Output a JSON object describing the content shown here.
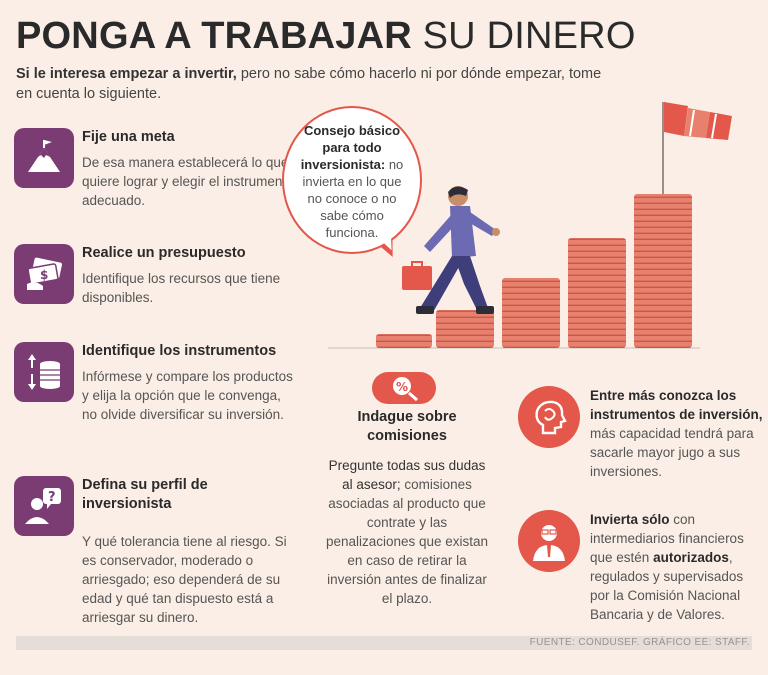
{
  "header": {
    "title_bold": "PONGA A TRABAJAR",
    "title_light": "SU DINERO",
    "intro_bold": "Si le interesa empezar a invertir,",
    "intro_rest": " pero no sabe cómo hacerlo ni por dónde empezar, tome en cuenta lo siguiente."
  },
  "left_items": [
    {
      "icon": "mountain-flag-icon",
      "title": "Fije una meta",
      "body": "De esa manera establecerá lo que quiere lograr y elegir el instrumento adecuado."
    },
    {
      "icon": "money-bills-icon",
      "title": "Realice un presupuesto",
      "body": "Identifique los recursos que tiene disponibles."
    },
    {
      "icon": "coins-chart-icon",
      "title": "Identifique los instrumentos",
      "body": "Infórmese y compare los productos y elija la opción que le convenga, no olvide diversificar su inversión."
    },
    {
      "icon": "person-question-icon",
      "title": "Defina su perfil de inversionista",
      "body": "Y qué tolerancia tiene al riesgo. Si es conservador, moderado o arriesgado; eso dependerá de su edad y qué tan dispuesto está a arriesgar su dinero."
    }
  ],
  "bubble": {
    "bold": "Consejo básico para todo inversionista:",
    "rest": " no invierta en lo que no conoce o no sabe cómo funciona."
  },
  "middle": {
    "icon": "percent-magnifier-icon",
    "title": "Indague sobre comisiones",
    "body_strong": "Pregunte todas sus dudas al asesor;",
    "body_rest": " comisiones asociadas al producto que contrate y las penalizaciones que existan en caso de retirar la inversión antes de finalizar el plazo."
  },
  "right_items": [
    {
      "icon": "head-profile-icon",
      "bold": "Entre más conozca los instrumentos de inversión,",
      "rest": " más capacidad tendrá para sacarle mayor jugo a sus inversiones."
    },
    {
      "icon": "advisor-person-icon",
      "bold": "Invierta sólo",
      "rest": " con intermediarios financieros que estén ",
      "bold2": "autorizados",
      "rest2": ", regulados y supervisados por la Comisión Nacional Bancaria y de Valores."
    }
  ],
  "footer": "FUENTE: CONDUSEF. GRÁFICO EE: STAFF.",
  "colors": {
    "background": "#fbeee6",
    "purple": "#7b3c74",
    "red": "#e4574b",
    "coin": "#e8806e"
  }
}
